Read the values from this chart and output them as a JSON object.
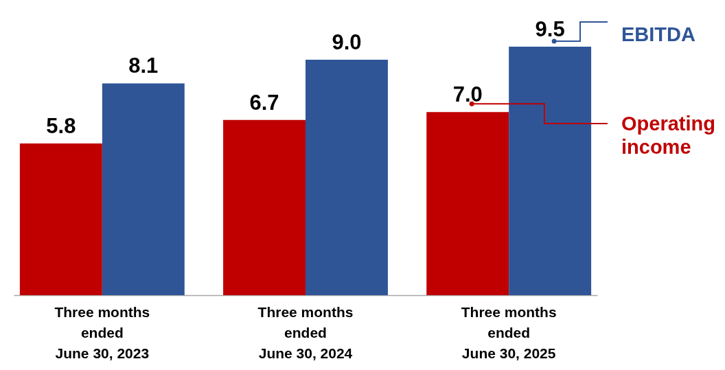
{
  "chart_data": {
    "type": "bar",
    "categories": [
      "Three months\nended\nJune 30, 2023",
      "Three months\nended\nJune 30, 2024",
      "Three months\nended\nJune 30, 2025"
    ],
    "series": [
      {
        "name": "Operating\nincome",
        "color": "#c00000",
        "values": [
          5.8,
          6.7,
          7.0
        ],
        "value_labels": [
          "5.8",
          "6.7",
          "7.0"
        ]
      },
      {
        "name": "EBITDA",
        "color": "#2f5597",
        "values": [
          8.1,
          9.0,
          9.5
        ],
        "value_labels": [
          "8.1",
          "9.0",
          "9.5"
        ]
      }
    ],
    "legend": false,
    "grid": false
  }
}
